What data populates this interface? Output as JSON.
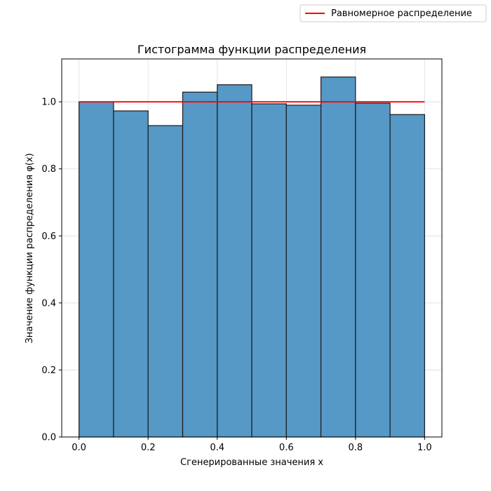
{
  "chart_data": {
    "type": "bar",
    "title": "Гистограмма функции распределения",
    "xlabel": "Сгенерированные значения x",
    "ylabel": "Значение функции распределения φ(x)",
    "bins": [
      {
        "x0": 0.0,
        "x1": 0.1,
        "value": 1.0
      },
      {
        "x0": 0.1,
        "x1": 0.2,
        "value": 0.973
      },
      {
        "x0": 0.2,
        "x1": 0.3,
        "value": 0.929
      },
      {
        "x0": 0.3,
        "x1": 0.4,
        "value": 1.029
      },
      {
        "x0": 0.4,
        "x1": 0.5,
        "value": 1.051
      },
      {
        "x0": 0.5,
        "x1": 0.6,
        "value": 0.994
      },
      {
        "x0": 0.6,
        "x1": 0.7,
        "value": 0.99
      },
      {
        "x0": 0.7,
        "x1": 0.8,
        "value": 1.074
      },
      {
        "x0": 0.8,
        "x1": 0.9,
        "value": 0.996
      },
      {
        "x0": 0.9,
        "x1": 1.0,
        "value": 0.962
      }
    ],
    "line": {
      "name": "Равномерное распределение",
      "x": [
        0.0,
        1.0
      ],
      "y": [
        1.0,
        1.0
      ]
    },
    "xlim": [
      -0.05,
      1.05
    ],
    "ylim": [
      0,
      1.128
    ],
    "xticks": [
      "0.0",
      "0.2",
      "0.4",
      "0.6",
      "0.8",
      "1.0"
    ],
    "yticks": [
      "0.0",
      "0.2",
      "0.4",
      "0.6",
      "0.8",
      "1.0"
    ],
    "grid": true,
    "legend_position": "top-right",
    "colors": {
      "bar": "#5698c6",
      "bar_edge": "#1a1a1a",
      "line": "#ff0000",
      "grid": "#dddddd"
    }
  }
}
